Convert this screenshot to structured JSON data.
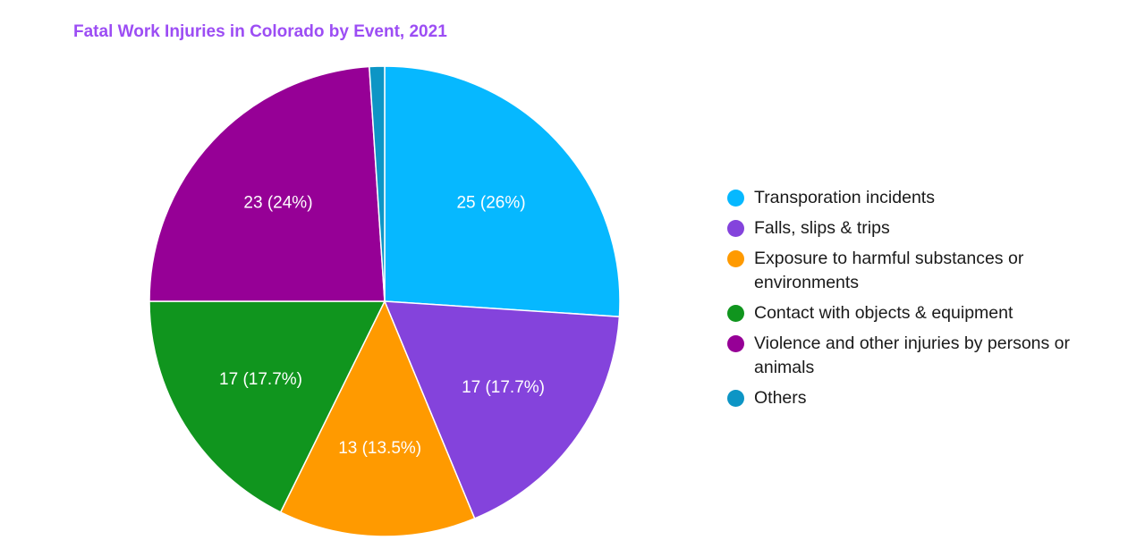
{
  "chart_data": {
    "type": "pie",
    "title": "Fatal Work Injuries in Colorado by Event, 2021",
    "title_color": "#9c4df4",
    "legend_position": "right",
    "slices": [
      {
        "name": "Transporation incidents",
        "value": 25,
        "label": "25 (26%)",
        "color": "#06b8ff"
      },
      {
        "name": "Falls, slips & trips",
        "value": 17,
        "label": "17 (17.7%)",
        "color": "#8443dc"
      },
      {
        "name": "Exposure to harmful substances or environments",
        "value": 13,
        "label": "13 (13.5%)",
        "color": "#ff9a00"
      },
      {
        "name": "Contact with objects & equipment",
        "value": 17,
        "label": "17 (17.7%)",
        "color": "#10951e"
      },
      {
        "name": "Violence and other injuries by persons or animals",
        "value": 23,
        "label": "23 (24%)",
        "color": "#960096"
      },
      {
        "name": "Others",
        "value": 1,
        "label": "",
        "color": "#0d95c5"
      }
    ]
  }
}
